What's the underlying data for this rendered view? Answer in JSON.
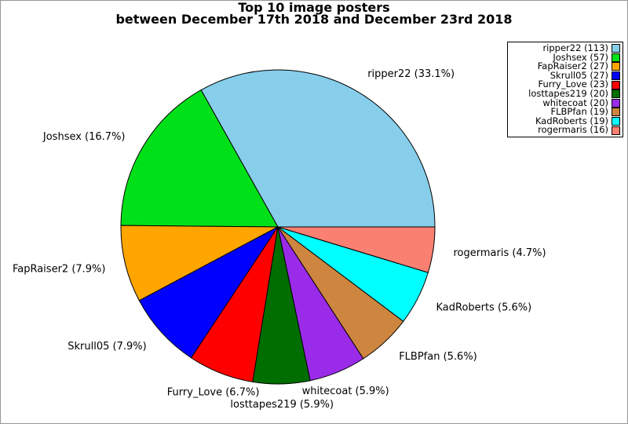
{
  "figure": {
    "title_line1": "Top 10 image posters",
    "title_line2": "between December 17th 2018 and December 23rd 2018"
  },
  "chart_data": {
    "type": "pie",
    "title": "Top 10 image posters between December 17th 2018 and December 23rd 2018",
    "start_angle_deg": 0,
    "direction": "counterclockwise",
    "total": 341,
    "legend_position": "top-right",
    "slice_outline_color": "#000000",
    "series": [
      {
        "name": "ripper22",
        "count": 113,
        "pct": 33.1,
        "slice_label": "ripper22 (33.1%)",
        "legend_label": "ripper22 (113)",
        "color": "#87CEEB"
      },
      {
        "name": "Joshsex",
        "count": 57,
        "pct": 16.7,
        "slice_label": "Joshsex (16.7%)",
        "legend_label": "Joshsex (57)",
        "color": "#00E019"
      },
      {
        "name": "FapRaiser2",
        "count": 27,
        "pct": 7.9,
        "slice_label": "FapRaiser2 (7.9%)",
        "legend_label": "FapRaiser2 (27)",
        "color": "#FFA500"
      },
      {
        "name": "Skrull05",
        "count": 27,
        "pct": 7.9,
        "slice_label": "Skrull05 (7.9%)",
        "legend_label": "Skrull05 (27)",
        "color": "#0000FF"
      },
      {
        "name": "Furry_Love",
        "count": 23,
        "pct": 6.7,
        "slice_label": "Furry_Love (6.7%)",
        "legend_label": "Furry_Love (23)",
        "color": "#FF0000"
      },
      {
        "name": "losttapes219",
        "count": 20,
        "pct": 5.9,
        "slice_label": "losttapes219 (5.9%)",
        "legend_label": "losttapes219 (20)",
        "color": "#006E00"
      },
      {
        "name": "whitecoat",
        "count": 20,
        "pct": 5.9,
        "slice_label": "whitecoat (5.9%)",
        "legend_label": "whitecoat (20)",
        "color": "#9A2BE8"
      },
      {
        "name": "FLBPfan",
        "count": 19,
        "pct": 5.6,
        "slice_label": "FLBPfan (5.6%)",
        "legend_label": "FLBPfan (19)",
        "color": "#CD853F"
      },
      {
        "name": "KadRoberts",
        "count": 19,
        "pct": 5.6,
        "slice_label": "KadRoberts (5.6%)",
        "legend_label": "KadRoberts (19)",
        "color": "#00FFFF"
      },
      {
        "name": "rogermaris",
        "count": 16,
        "pct": 4.7,
        "slice_label": "rogermaris (4.7%)",
        "legend_label": "rogermaris (16)",
        "color": "#FA8072"
      }
    ]
  }
}
